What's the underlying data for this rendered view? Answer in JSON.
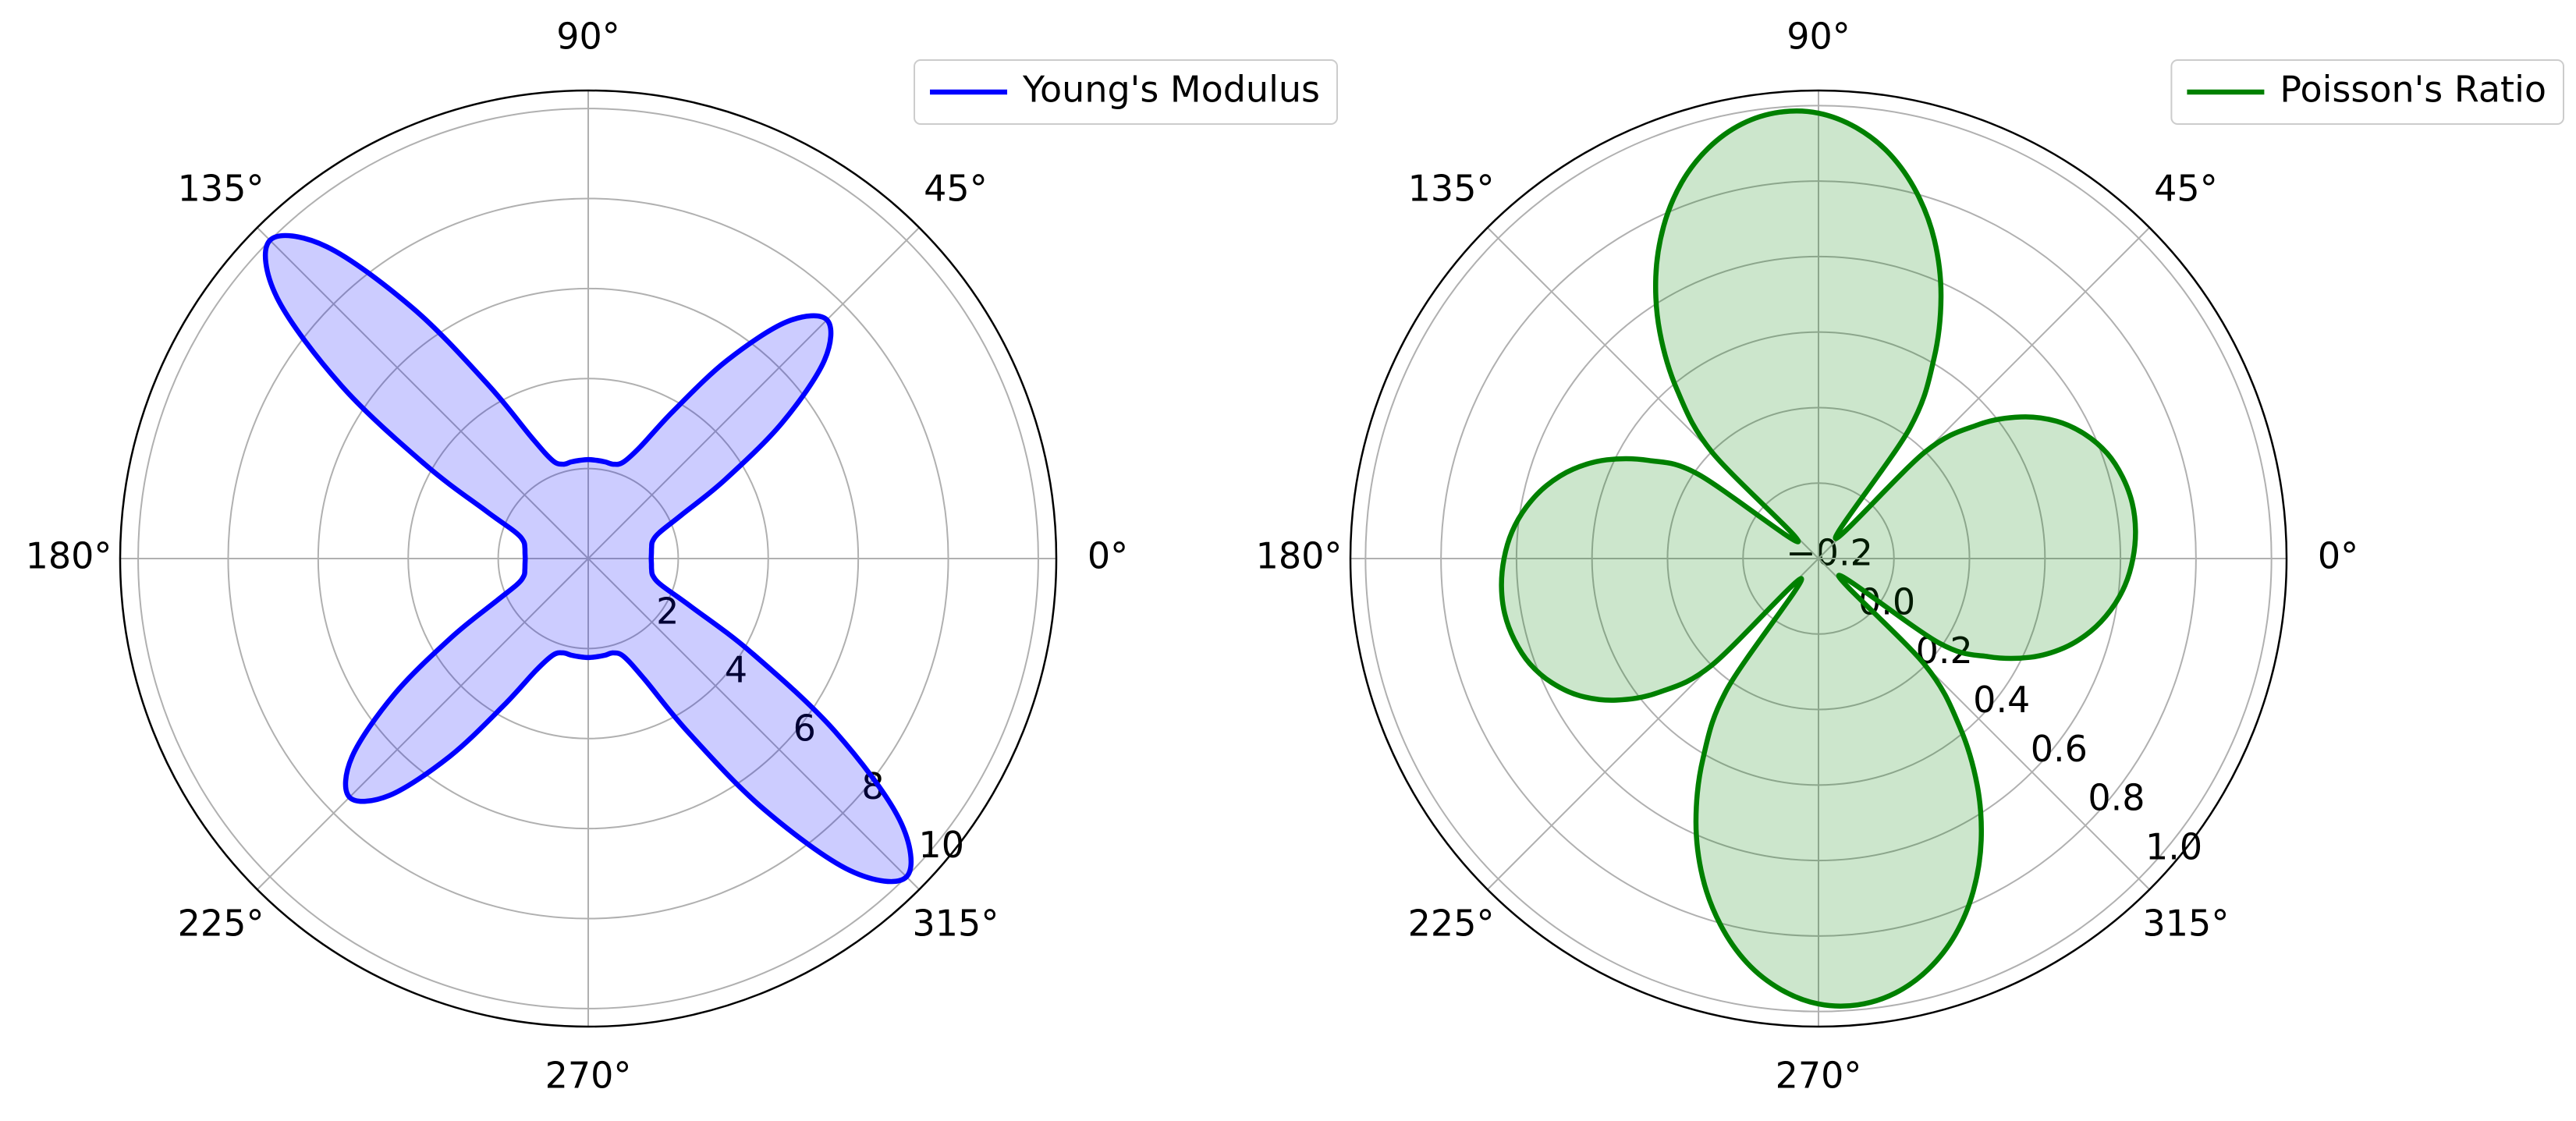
{
  "chart_data": [
    {
      "type": "polar",
      "x": [
        0,
        5,
        10,
        15,
        20,
        25,
        30,
        35,
        40,
        45,
        50,
        55,
        60,
        65,
        70,
        75,
        80,
        85,
        90,
        95,
        100,
        105,
        110,
        115,
        120,
        125,
        130,
        135,
        140,
        145,
        150,
        155,
        160,
        165,
        170,
        175,
        180,
        185,
        190,
        195,
        200,
        205,
        210,
        215,
        220,
        225,
        230,
        235,
        240,
        245,
        250,
        255,
        260,
        265,
        270,
        275,
        280,
        285,
        290,
        295,
        300,
        305,
        310,
        315,
        320,
        325,
        330,
        335,
        340,
        345,
        350,
        355
      ],
      "series": [
        {
          "name": "Young's Modulus",
          "color": "#0000ff",
          "values": [
            1.4,
            1.41,
            1.43,
            1.48,
            1.68,
            2.28,
            3.52,
            5.26,
            6.85,
            7.5,
            6.87,
            5.37,
            3.79,
            2.74,
            2.28,
            2.17,
            2.18,
            2.19,
            2.2,
            2.19,
            2.18,
            2.17,
            2.32,
            2.96,
            4.48,
            6.79,
            9.05,
            10,
            9.03,
            6.69,
            4.2,
            2.51,
            1.73,
            1.49,
            1.43,
            1.41,
            1.4,
            1.41,
            1.43,
            1.48,
            1.68,
            2.28,
            3.52,
            5.26,
            6.85,
            7.5,
            6.87,
            5.37,
            3.79,
            2.74,
            2.28,
            2.17,
            2.18,
            2.19,
            2.2,
            2.19,
            2.18,
            2.17,
            2.32,
            2.96,
            4.48,
            6.79,
            9.05,
            10,
            9.03,
            6.69,
            4.2,
            2.51,
            1.73,
            1.49,
            1.43,
            1.41
          ]
        }
      ],
      "xticks": [
        {
          "value": 0,
          "label": "0°"
        },
        {
          "value": 45,
          "label": "45°"
        },
        {
          "value": 90,
          "label": "90°"
        },
        {
          "value": 135,
          "label": "135°"
        },
        {
          "value": 180,
          "label": "180°"
        },
        {
          "value": 225,
          "label": "225°"
        },
        {
          "value": 270,
          "label": "270°"
        },
        {
          "value": 315,
          "label": "315°"
        }
      ],
      "ylim": [
        0,
        10.4
      ],
      "yticks": [
        2,
        4,
        6,
        8,
        10
      ],
      "grid": true,
      "legend": "upper right",
      "fill_opacity": 0.2
    },
    {
      "type": "polar",
      "x": [
        0,
        5,
        10,
        15,
        20,
        25,
        30,
        35,
        40,
        45,
        50,
        55,
        60,
        65,
        70,
        75,
        80,
        85,
        90,
        95,
        100,
        105,
        110,
        115,
        120,
        125,
        130,
        135,
        140,
        145,
        150,
        155,
        160,
        165,
        170,
        175,
        180,
        185,
        190,
        195,
        200,
        205,
        210,
        215,
        220,
        225,
        230,
        235,
        240,
        245,
        250,
        255,
        260,
        265,
        270,
        275,
        280,
        285,
        290,
        295,
        300,
        305,
        310,
        315,
        320,
        325,
        330,
        335,
        340,
        345,
        350,
        355
      ],
      "series": [
        {
          "name": "Poisson's Ratio",
          "color": "#008000",
          "values": [
            0.633,
            0.643,
            0.644,
            0.634,
            0.614,
            0.579,
            0.528,
            0.454,
            0.351,
            0.2,
            -0.13,
            0.221,
            0.412,
            0.568,
            0.698,
            0.804,
            0.888,
            0.946,
            0.98,
            0.987,
            0.969,
            0.926,
            0.86,
            0.771,
            0.662,
            0.533,
            0.382,
            0.2,
            -0.13,
            0.19,
            0.32,
            0.419,
            0.492,
            0.546,
            0.586,
            0.615,
            0.633,
            0.643,
            0.644,
            0.634,
            0.614,
            0.579,
            0.528,
            0.454,
            0.351,
            0.2,
            -0.13,
            0.221,
            0.412,
            0.568,
            0.698,
            0.804,
            0.888,
            0.946,
            0.98,
            0.987,
            0.969,
            0.926,
            0.86,
            0.771,
            0.662,
            0.533,
            0.382,
            0.2,
            -0.13,
            0.19,
            0.32,
            0.419,
            0.492,
            0.546,
            0.586,
            0.615
          ]
        }
      ],
      "xticks": [
        {
          "value": 0,
          "label": "0°"
        },
        {
          "value": 45,
          "label": "45°"
        },
        {
          "value": 90,
          "label": "90°"
        },
        {
          "value": 135,
          "label": "135°"
        },
        {
          "value": 180,
          "label": "180°"
        },
        {
          "value": 225,
          "label": "225°"
        },
        {
          "value": 270,
          "label": "270°"
        },
        {
          "value": 315,
          "label": "315°"
        }
      ],
      "ylim": [
        -0.2,
        1.04
      ],
      "yticks": [
        {
          "value": -0.2,
          "label": "−0.2"
        },
        {
          "value": 0.0,
          "label": "0.0"
        },
        0.2,
        0.4,
        0.6,
        0.8,
        {
          "value": 1.0,
          "label": "1.0"
        }
      ],
      "grid": true,
      "legend": "upper right",
      "fill_opacity": 0.2
    }
  ]
}
